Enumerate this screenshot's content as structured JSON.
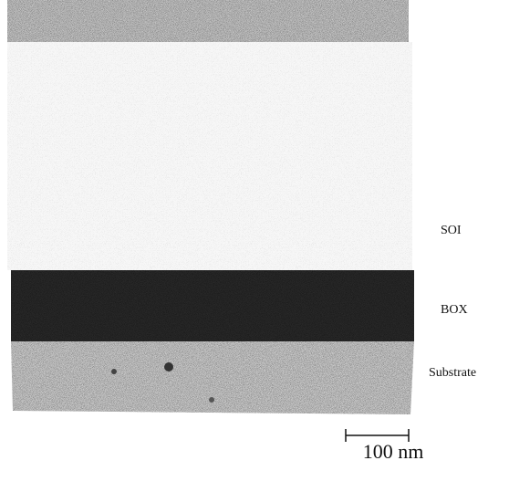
{
  "labels": [
    "SOI",
    "BOX",
    "Substrate"
  ],
  "scale_bar": {
    "label": "100 nm"
  }
}
